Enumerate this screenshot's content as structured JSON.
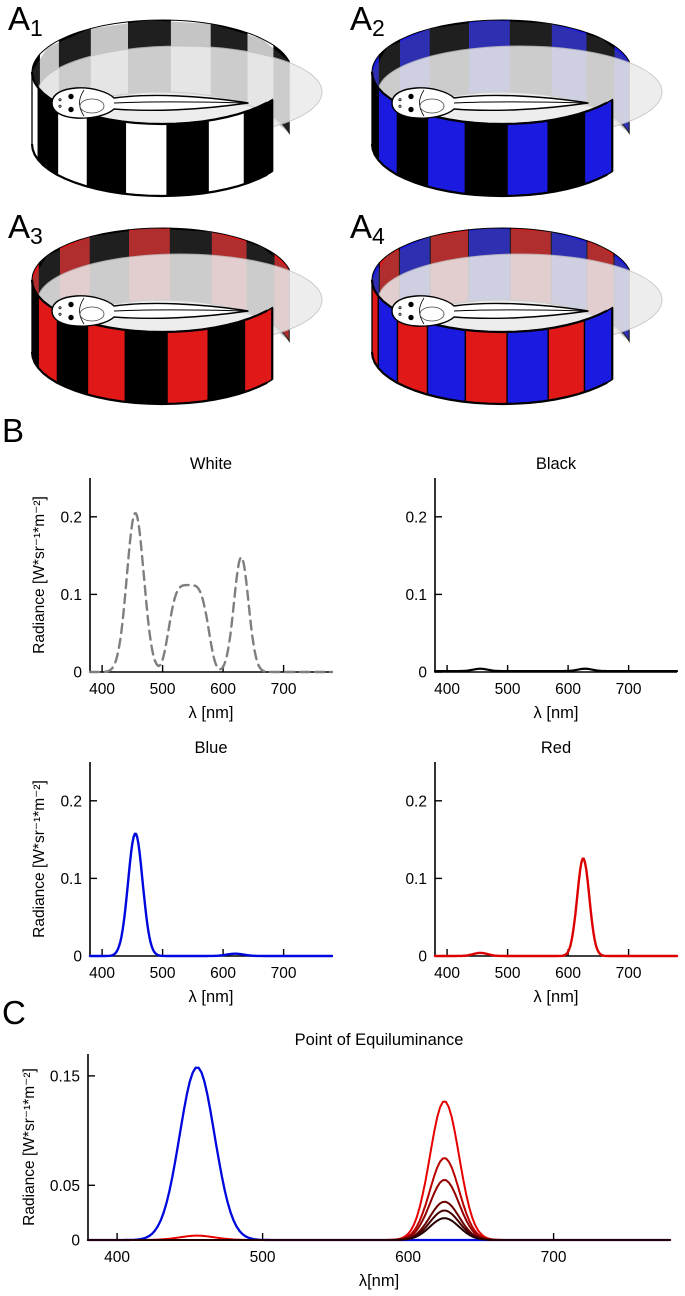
{
  "figure": {
    "panel_labels": {
      "a1": {
        "letter": "A",
        "subscript": "1"
      },
      "a2": {
        "letter": "A",
        "subscript": "2"
      },
      "a3": {
        "letter": "A",
        "subscript": "3"
      },
      "a4": {
        "letter": "A",
        "subscript": "4"
      },
      "b": "B",
      "c": "C"
    },
    "drums": [
      {
        "id": "a1",
        "colors": [
          "#000000",
          "#ffffff"
        ],
        "desc": "tadpole in black/white striped drum"
      },
      {
        "id": "a2",
        "colors": [
          "#1a1ae0",
          "#000000"
        ],
        "desc": "tadpole in blue/black striped drum"
      },
      {
        "id": "a3",
        "colors": [
          "#e01818",
          "#000000"
        ],
        "desc": "tadpole in red/black striped drum"
      },
      {
        "id": "a4",
        "colors": [
          "#1a1ae0",
          "#e01818"
        ],
        "desc": "tadpole in blue/red striped drum"
      }
    ],
    "drum_surface_color": "#ebebeb"
  },
  "chart_data": [
    {
      "id": "white",
      "type": "line",
      "title": "White",
      "xlabel": "λ [nm]",
      "ylabel": "Radiance [W*sr⁻¹*m⁻²]",
      "xlim": [
        380,
        780
      ],
      "ylim": [
        0,
        0.25
      ],
      "xticks": [
        400,
        500,
        600,
        700
      ],
      "yticks": [
        0,
        0.1,
        0.2
      ],
      "series": [
        {
          "name": "white spectrum",
          "color": "#7f7f7f",
          "dash": "9 6",
          "width": 2.4,
          "peaks": [
            {
              "mu": 455,
              "amp": 0.205,
              "sigma": 14,
              "shape": "gauss"
            },
            {
              "mu": 543,
              "amp": 0.112,
              "sigma": 36,
              "shape": "flattop"
            },
            {
              "mu": 630,
              "amp": 0.148,
              "sigma": 12,
              "shape": "gauss"
            }
          ]
        }
      ]
    },
    {
      "id": "black",
      "type": "line",
      "title": "Black",
      "xlabel": "λ [nm]",
      "ylabel": "",
      "xlim": [
        380,
        780
      ],
      "ylim": [
        0,
        0.25
      ],
      "xticks": [
        400,
        500,
        600,
        700
      ],
      "yticks": [
        0,
        0.1,
        0.2
      ],
      "series": [
        {
          "name": "black spectrum",
          "color": "#000000",
          "width": 2.2,
          "baseline": 0.0012,
          "peaks": [
            {
              "mu": 455,
              "amp": 0.003,
              "sigma": 12,
              "shape": "gauss"
            },
            {
              "mu": 628,
              "amp": 0.003,
              "sigma": 12,
              "shape": "gauss"
            }
          ]
        }
      ]
    },
    {
      "id": "blue",
      "type": "line",
      "title": "Blue",
      "xlabel": "λ [nm]",
      "ylabel": "Radiance [W*sr⁻¹*m⁻²]",
      "xlim": [
        380,
        780
      ],
      "ylim": [
        0,
        0.25
      ],
      "xticks": [
        400,
        500,
        600,
        700
      ],
      "yticks": [
        0,
        0.1,
        0.2
      ],
      "series": [
        {
          "name": "blue spectrum",
          "color": "#0008dd",
          "width": 2.4,
          "peaks": [
            {
              "mu": 455,
              "amp": 0.158,
              "sigma": 12,
              "shape": "gauss"
            },
            {
              "mu": 620,
              "amp": 0.003,
              "sigma": 14,
              "shape": "gauss"
            }
          ]
        }
      ]
    },
    {
      "id": "red",
      "type": "line",
      "title": "Red",
      "xlabel": "λ [nm]",
      "ylabel": "",
      "xlim": [
        380,
        780
      ],
      "ylim": [
        0,
        0.25
      ],
      "xticks": [
        400,
        500,
        600,
        700
      ],
      "yticks": [
        0,
        0.1,
        0.2
      ],
      "series": [
        {
          "name": "red spectrum",
          "color": "#dd0000",
          "width": 2.4,
          "peaks": [
            {
              "mu": 625,
              "amp": 0.126,
              "sigma": 10,
              "shape": "gauss"
            },
            {
              "mu": 455,
              "amp": 0.004,
              "sigma": 12,
              "shape": "gauss"
            }
          ]
        }
      ]
    },
    {
      "id": "equiluminance",
      "type": "line",
      "title": "Point of Equiluminance",
      "xlabel": "λ[nm]",
      "ylabel": "Radiance [W*sr⁻¹*m⁻²]",
      "xlim": [
        380,
        780
      ],
      "ylim": [
        0,
        0.17
      ],
      "xticks": [
        400,
        500,
        600,
        700
      ],
      "yticks": [
        0,
        0.05,
        0.15
      ],
      "series": [
        {
          "name": "blue reference",
          "color": "#0008dd",
          "width": 2.3,
          "peaks": [
            {
              "mu": 455,
              "amp": 0.158,
              "sigma": 12,
              "shape": "gauss"
            }
          ]
        },
        {
          "name": "red intensity 6",
          "color": "#e60000",
          "width": 2,
          "peaks": [
            {
              "mu": 625,
              "amp": 0.127,
              "sigma": 10,
              "shape": "gauss"
            },
            {
              "mu": 455,
              "amp": 0.004,
              "sigma": 12,
              "shape": "gauss"
            }
          ]
        },
        {
          "name": "red intensity 5",
          "color": "#bb0000",
          "width": 2,
          "peaks": [
            {
              "mu": 625,
              "amp": 0.075,
              "sigma": 10,
              "shape": "gauss"
            }
          ]
        },
        {
          "name": "red intensity 4",
          "color": "#930000",
          "width": 2,
          "peaks": [
            {
              "mu": 625,
              "amp": 0.055,
              "sigma": 10,
              "shape": "gauss"
            }
          ]
        },
        {
          "name": "red intensity 3",
          "color": "#6b0000",
          "width": 2,
          "peaks": [
            {
              "mu": 625,
              "amp": 0.035,
              "sigma": 10,
              "shape": "gauss"
            }
          ]
        },
        {
          "name": "red intensity 2",
          "color": "#450000",
          "width": 2,
          "peaks": [
            {
              "mu": 625,
              "amp": 0.027,
              "sigma": 10,
              "shape": "gauss"
            }
          ]
        },
        {
          "name": "red intensity 1",
          "color": "#250000",
          "width": 2,
          "peaks": [
            {
              "mu": 625,
              "amp": 0.02,
              "sigma": 10,
              "shape": "gauss"
            }
          ]
        }
      ]
    }
  ]
}
